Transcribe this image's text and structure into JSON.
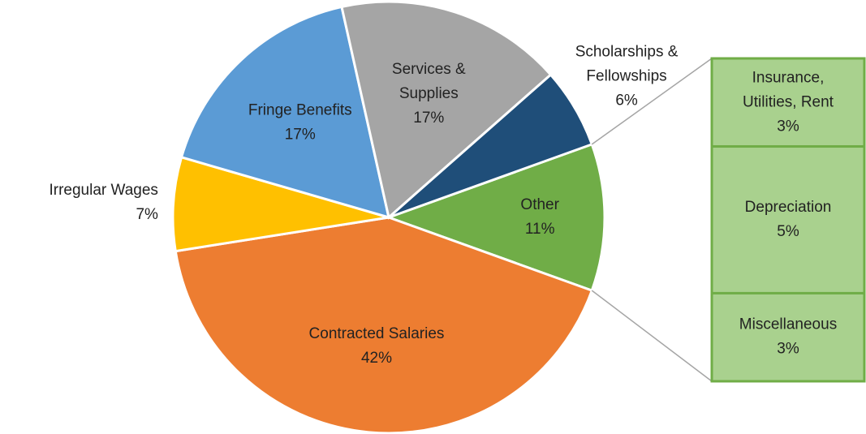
{
  "chart_data": {
    "type": "pie",
    "categories": [
      "Other",
      "Contracted Salaries",
      "Irregular Wages",
      "Fringe Benefits",
      "Services & Supplies",
      "Scholarships & Fellowships"
    ],
    "values": [
      11,
      42,
      7,
      17,
      17,
      6
    ],
    "value_labels": [
      "11%",
      "42%",
      "7%",
      "17%",
      "17%",
      "6%"
    ],
    "colors": [
      "#70ad47",
      "#ed7d31",
      "#ffc000",
      "#5b9bd5",
      "#a5a5a5",
      "#1f4e79"
    ],
    "breakdown": {
      "categories": [
        "Insurance, Utilities, Rent",
        "Depreciation",
        "Miscellaneous"
      ],
      "values": [
        3,
        5,
        3
      ],
      "value_labels": [
        "3%",
        "5%",
        "3%"
      ],
      "color": "#a9d18e",
      "border_color": "#70ad47"
    }
  }
}
